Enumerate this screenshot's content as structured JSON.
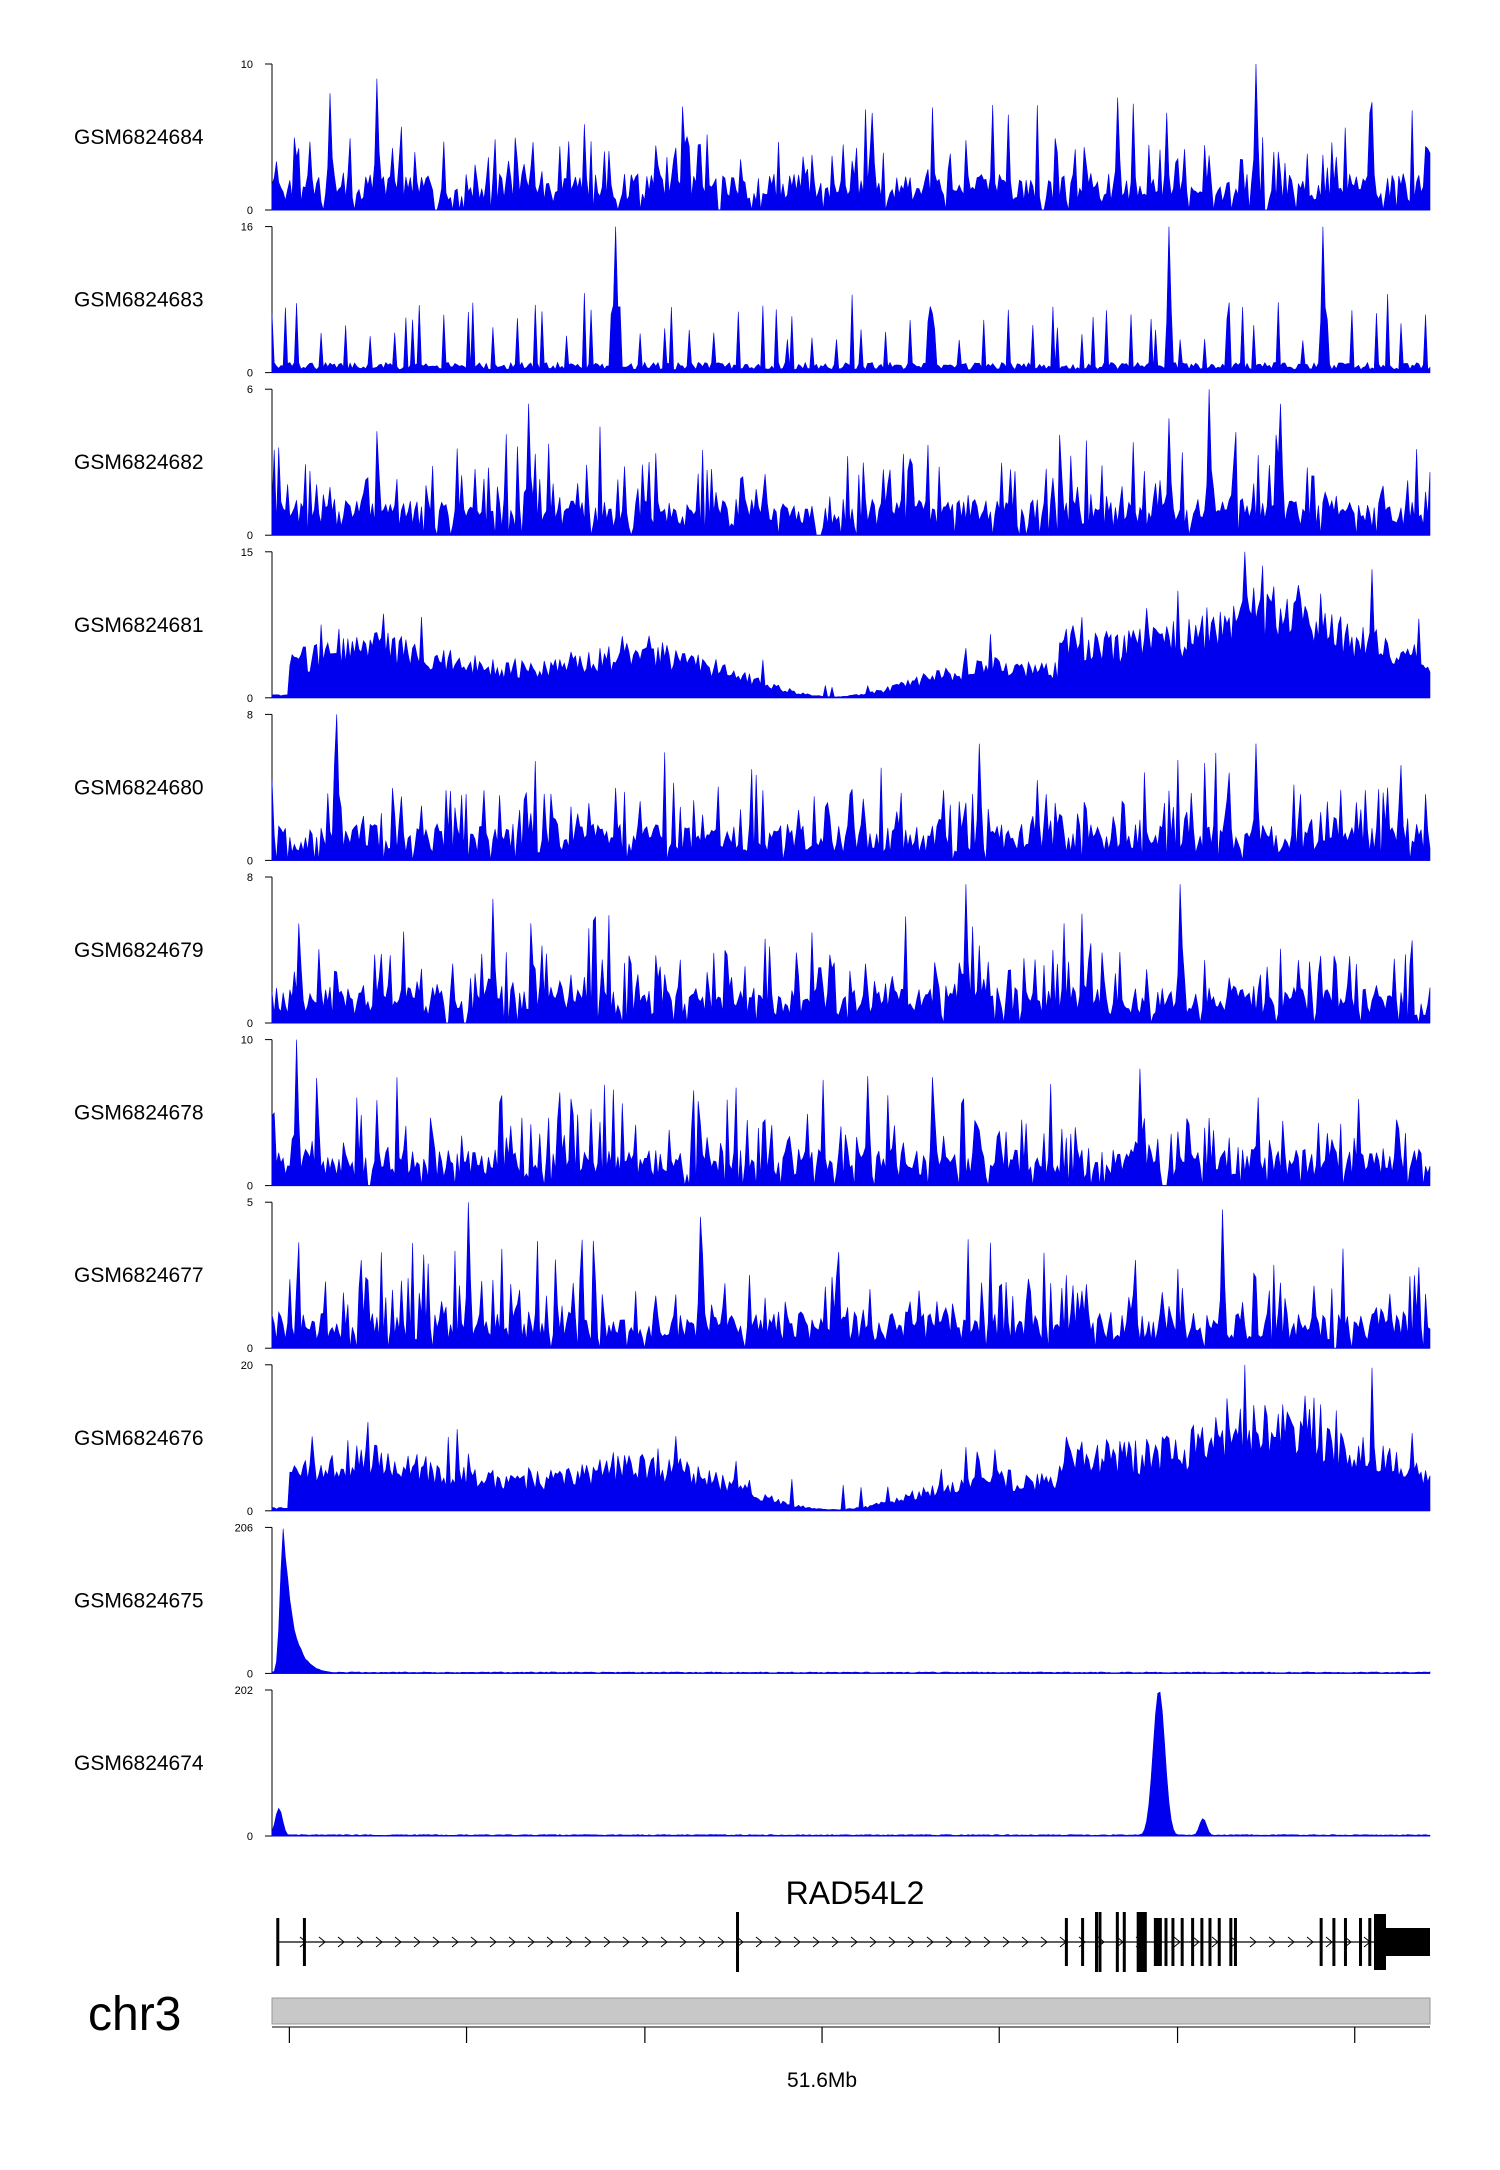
{
  "chart_data": {
    "type": "area",
    "tracks": [
      {
        "name": "GSM6824684",
        "ymax": "10",
        "ymin": "0",
        "pattern": "spiky",
        "peaks": [
          [
            0.85,
            1.0
          ],
          [
            0.73,
            0.77
          ],
          [
            0.05,
            0.8
          ],
          [
            0.09,
            0.9
          ]
        ]
      },
      {
        "name": "GSM6824683",
        "ymax": "16",
        "ymin": "0",
        "pattern": "sparse",
        "peaks": [
          [
            0.296,
            1.0
          ],
          [
            0.774,
            1.0
          ],
          [
            0.907,
            1.0
          ]
        ]
      },
      {
        "name": "GSM6824682",
        "ymax": "6",
        "ymin": "0",
        "pattern": "spiky",
        "peaks": [
          [
            0.222,
            0.9
          ],
          [
            0.775,
            0.8
          ],
          [
            0.87,
            0.9
          ],
          [
            0.81,
            1.0
          ]
        ]
      },
      {
        "name": "GSM6824681",
        "ymax": "15",
        "ymin": "0",
        "pattern": "broad",
        "peaks": [
          [
            0.84,
            1.0
          ],
          [
            0.95,
            0.88
          ]
        ]
      },
      {
        "name": "GSM6824680",
        "ymax": "8",
        "ymin": "0",
        "pattern": "spiky",
        "peaks": [
          [
            0.056,
            1.0
          ],
          [
            0.61,
            0.8
          ],
          [
            0.85,
            0.8
          ]
        ]
      },
      {
        "name": "GSM6824679",
        "ymax": "8",
        "ymin": "0",
        "pattern": "spiky",
        "peaks": [
          [
            0.19,
            0.85
          ],
          [
            0.6,
            0.95
          ],
          [
            0.785,
            0.95
          ]
        ]
      },
      {
        "name": "GSM6824678",
        "ymax": "10",
        "ymin": "0",
        "pattern": "spiky",
        "peaks": [
          [
            0.022,
            1.0
          ],
          [
            0.514,
            0.75
          ],
          [
            0.75,
            0.8
          ]
        ]
      },
      {
        "name": "GSM6824677",
        "ymax": "5",
        "ymin": "0",
        "pattern": "spiky",
        "peaks": [
          [
            0.17,
            1.0
          ],
          [
            0.37,
            0.9
          ],
          [
            0.82,
            0.95
          ]
        ]
      },
      {
        "name": "GSM6824676",
        "ymax": "20",
        "ymin": "0",
        "pattern": "broad",
        "peaks": [
          [
            0.84,
            1.0
          ],
          [
            0.95,
            0.98
          ]
        ]
      },
      {
        "name": "GSM6824675",
        "ymax": "206",
        "ymin": "0",
        "pattern": "spike",
        "peaks": [
          [
            0.01,
            1.0
          ]
        ]
      },
      {
        "name": "GSM6824674",
        "ymax": "202",
        "ymin": "0",
        "pattern": "spike",
        "peaks": [
          [
            0.766,
            1.0
          ],
          [
            0.804,
            0.12
          ],
          [
            0.006,
            0.19
          ]
        ]
      }
    ],
    "gene": {
      "name": "RAD54L2",
      "exons": [
        0.005,
        0.028,
        0.402,
        0.686,
        0.7,
        0.712,
        0.715,
        0.73,
        0.736,
        0.748,
        0.752,
        0.765,
        0.772,
        0.778,
        0.786,
        0.795,
        0.803,
        0.81,
        0.818,
        0.828,
        0.832,
        0.906,
        0.917,
        0.927,
        0.94,
        0.948
      ]
    },
    "chromosome": "chr3",
    "ticks": [
      0.015,
      0.168,
      0.322,
      0.475,
      0.628,
      0.782,
      0.935
    ],
    "tick_labels": [
      {
        "at": 0.475,
        "text": "51.6Mb"
      }
    ],
    "colors": {
      "signal": "#0000ee",
      "ideogram": "#c8c8c8",
      "gene": "#000000"
    }
  }
}
